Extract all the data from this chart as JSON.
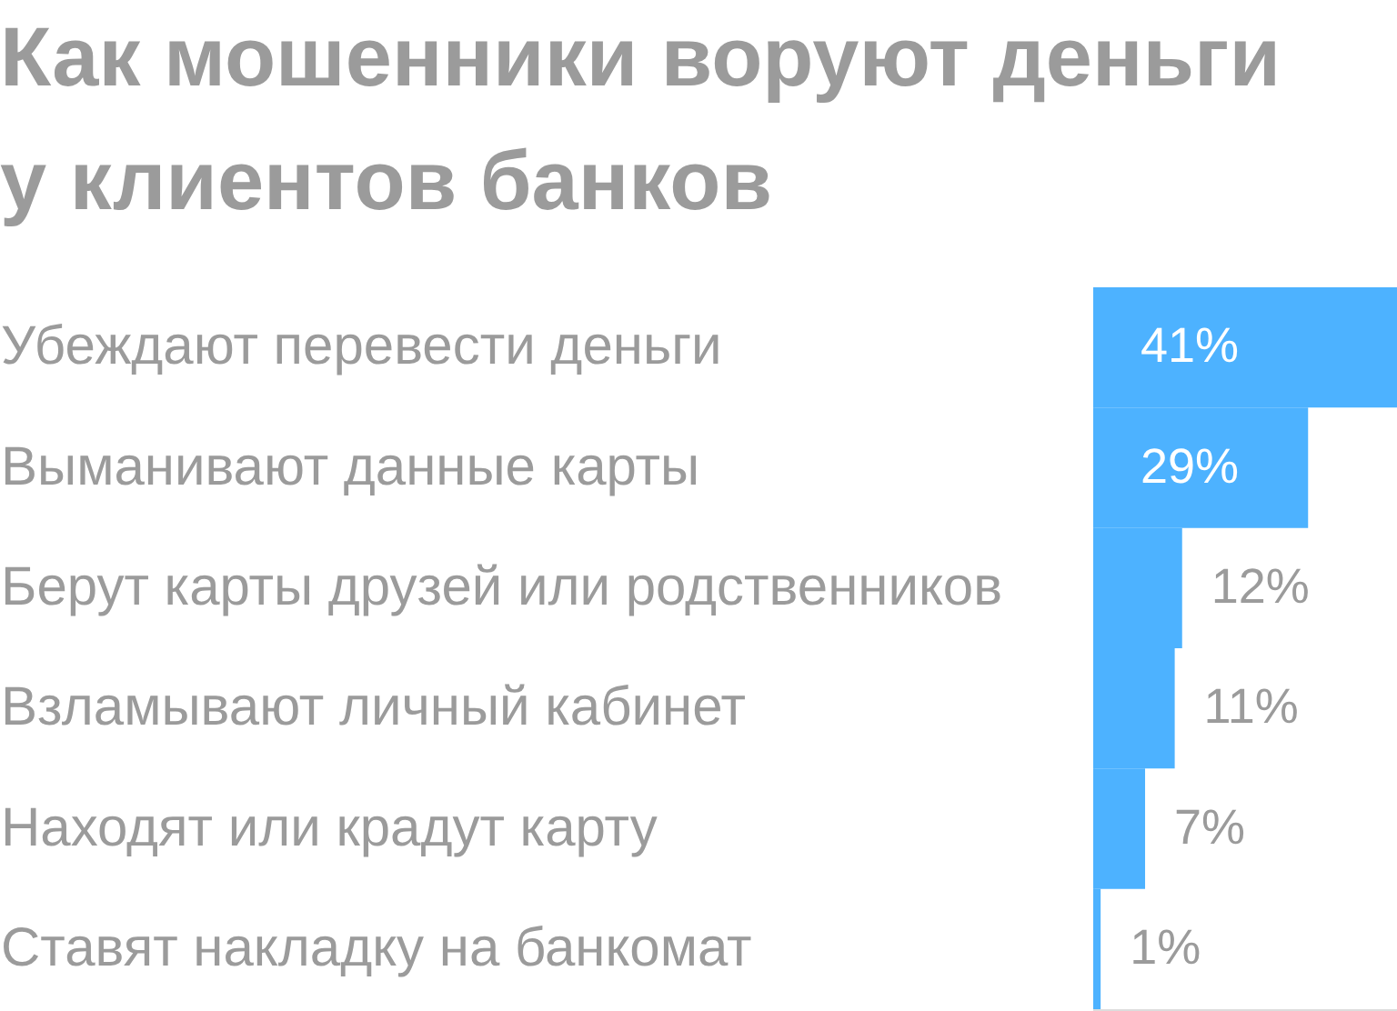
{
  "chart_data": {
    "type": "bar",
    "orientation": "horizontal",
    "title": "Как мошенники воруют деньги у клиентов банков",
    "categories": [
      "Убеждают перевести деньги",
      "Выманивают данные карты",
      "Берут карты друзей или родственников",
      "Взламывают личный кабинет",
      "Находят или крадут карту",
      "Ставят накладку на банкомат"
    ],
    "values": [
      41,
      29,
      12,
      11,
      7,
      1
    ],
    "value_labels": [
      "41%",
      "29%",
      "12%",
      "11%",
      "7%",
      "1%"
    ],
    "color": "#4db2ff"
  }
}
